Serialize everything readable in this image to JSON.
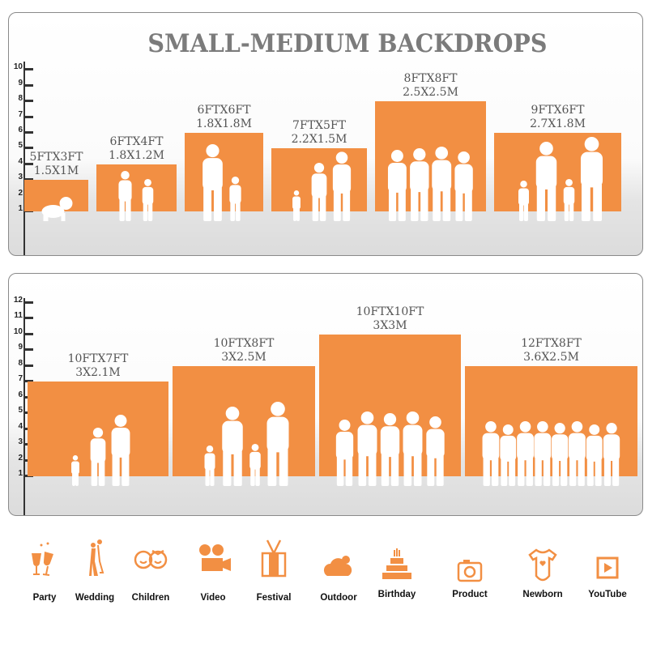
{
  "title": "SMALL-MEDIUM BACKDROPS",
  "accent_color": "#f28f43",
  "panels": [
    {
      "ruler": [
        "1",
        "2",
        "3",
        "4",
        "5",
        "6",
        "7",
        "8",
        "9",
        "10"
      ],
      "backdrops": [
        {
          "feet": "5FTX3FT",
          "meters": "1.5X1M",
          "height_ft": 3,
          "people": "crawling-baby"
        },
        {
          "feet": "6FTX4FT",
          "meters": "1.8X1.2M",
          "height_ft": 4,
          "people": "two-children"
        },
        {
          "feet": "6FTX6FT",
          "meters": "1.8X1.8M",
          "height_ft": 6,
          "people": "mother-with-children"
        },
        {
          "feet": "7FTX5FT",
          "meters": "2.2X1.5M",
          "height_ft": 5,
          "people": "family-of-three"
        },
        {
          "feet": "8FTX8FT",
          "meters": "2.5X2.5M",
          "height_ft": 8,
          "people": "four-adults"
        },
        {
          "feet": "9FTX6FT",
          "meters": "2.7X1.8M",
          "height_ft": 6,
          "people": "family-of-four"
        }
      ]
    },
    {
      "ruler": [
        "1",
        "2",
        "3",
        "4",
        "5",
        "6",
        "7",
        "8",
        "9",
        "10",
        "11",
        "12"
      ],
      "backdrops": [
        {
          "feet": "10FTX7FT",
          "meters": "3X2.1M",
          "height_ft": 7,
          "people": "family-of-three"
        },
        {
          "feet": "10FTX8FT",
          "meters": "3X2.5M",
          "height_ft": 8,
          "people": "family-of-four"
        },
        {
          "feet": "10FTX10FT",
          "meters": "3X3M",
          "height_ft": 10,
          "people": "five-adults"
        },
        {
          "feet": "12FTX8FT",
          "meters": "3.6X2.5M",
          "height_ft": 8,
          "people": "group-of-eight"
        }
      ]
    }
  ],
  "uses": [
    {
      "label": "Party",
      "icon": "wine-glasses-icon"
    },
    {
      "label": "Wedding",
      "icon": "wedding-couple-icon"
    },
    {
      "label": "Children",
      "icon": "children-faces-icon"
    },
    {
      "label": "Video",
      "icon": "film-camera-icon"
    },
    {
      "label": "Festival",
      "icon": "gift-box-icon"
    },
    {
      "label": "Outdoor",
      "icon": "cloud-icon"
    },
    {
      "label": "Birthday",
      "icon": "birthday-cake-icon"
    },
    {
      "label": "Product",
      "icon": "camera-icon"
    },
    {
      "label": "Newborn",
      "icon": "baby-onesie-icon"
    },
    {
      "label": "YouTube",
      "icon": "play-button-icon"
    }
  ]
}
